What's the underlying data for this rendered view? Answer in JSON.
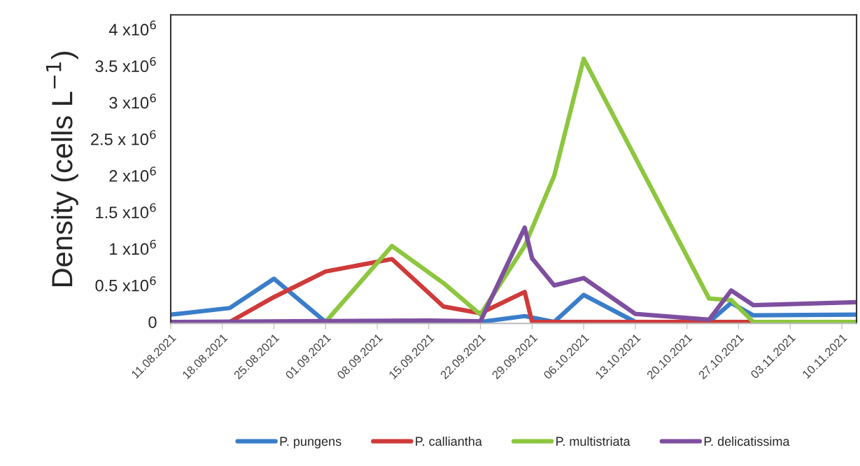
{
  "chart_data": {
    "type": "line",
    "ylabel": "Density (cells L$^{−1}$)",
    "xlim": [
      "2021-08-11",
      "2021-11-12"
    ],
    "xticks": [
      {
        "value": "2021-08-11",
        "label": "11.08.2021"
      },
      {
        "value": "2021-08-18",
        "label": "18.08.2021"
      },
      {
        "value": "2021-08-25",
        "label": "25.08.2021"
      },
      {
        "value": "2021-09-01",
        "label": "01.09.2021"
      },
      {
        "value": "2021-09-08",
        "label": "08.09.2021"
      },
      {
        "value": "2021-09-15",
        "label": "15.09.2021"
      },
      {
        "value": "2021-09-22",
        "label": "22.09.2021"
      },
      {
        "value": "2021-09-29",
        "label": "29.09.2021"
      },
      {
        "value": "2021-10-06",
        "label": "06.10.2021"
      },
      {
        "value": "2021-10-13",
        "label": "13.10.2021"
      },
      {
        "value": "2021-10-20",
        "label": "20.10.2021"
      },
      {
        "value": "2021-10-27",
        "label": "27.10.2021"
      },
      {
        "value": "2021-11-03",
        "label": "03.11.2021"
      },
      {
        "value": "2021-11-10",
        "label": "10.11.2021"
      }
    ],
    "ylim": [
      -20000,
      4200000
    ],
    "yticks": [
      0,
      {
        "value": 500000,
        "label": "0.5 x10$^{6}$"
      },
      {
        "value": 1000000,
        "label": "1 x10$^{6}$"
      },
      {
        "value": 1500000,
        "label": "1.5 x10$^{6}$"
      },
      {
        "value": 2000000,
        "label": "2 x10$^{6}$"
      },
      {
        "value": 2500000,
        "label": "2.5 x 10$^{6}$"
      },
      {
        "value": 3000000,
        "label": "3 x10$^{6}$"
      },
      {
        "value": 3500000,
        "label": "3.5 x10$^{6}$"
      },
      {
        "value": 4000000,
        "label": "4 x10$^{6}$"
      }
    ],
    "grid": false,
    "legend": "bottom",
    "marker": "none",
    "line_style": "solid",
    "series": [
      {
        "name": "P. pungens",
        "color": "#3a7dc9",
        "x": [
          "2021-08-11",
          "2021-08-19",
          "2021-08-25",
          "2021-09-01",
          "2021-09-22",
          "2021-09-28",
          "2021-10-02",
          "2021-10-06",
          "2021-10-13",
          "2021-10-23",
          "2021-10-26",
          "2021-10-29",
          "2021-11-12"
        ],
        "values": [
          100000,
          190000,
          590000,
          0,
          0,
          80000,
          0,
          370000,
          0,
          0,
          260000,
          90000,
          100000
        ]
      },
      {
        "name": "P. calliantha",
        "color": "#d03a3a",
        "x": [
          "2021-08-19",
          "2021-08-25",
          "2021-09-01",
          "2021-09-10",
          "2021-09-17",
          "2021-09-22",
          "2021-09-28",
          "2021-09-29",
          "2021-10-29"
        ],
        "values": [
          0,
          340000,
          690000,
          860000,
          210000,
          120000,
          410000,
          0,
          0
        ]
      },
      {
        "name": "P. multistriata",
        "color": "#8dc63f",
        "x": [
          "2021-08-25",
          "2021-09-01",
          "2021-09-10",
          "2021-09-17",
          "2021-09-22",
          "2021-09-28",
          "2021-10-02",
          "2021-10-06",
          "2021-10-23",
          "2021-10-26",
          "2021-10-29",
          "2021-11-12"
        ],
        "values": [
          0,
          0,
          1040000,
          530000,
          100000,
          1040000,
          2000000,
          3600000,
          320000,
          300000,
          0,
          0
        ]
      },
      {
        "name": "P. delicatissima",
        "color": "#7e4fa0",
        "x": [
          "2021-08-11",
          "2021-09-15",
          "2021-09-22",
          "2021-09-28",
          "2021-09-29",
          "2021-10-02",
          "2021-10-06",
          "2021-10-13",
          "2021-10-23",
          "2021-10-26",
          "2021-10-29",
          "2021-11-12"
        ],
        "values": [
          0,
          20000,
          10000,
          1290000,
          870000,
          500000,
          600000,
          110000,
          30000,
          430000,
          230000,
          270000
        ]
      }
    ]
  }
}
